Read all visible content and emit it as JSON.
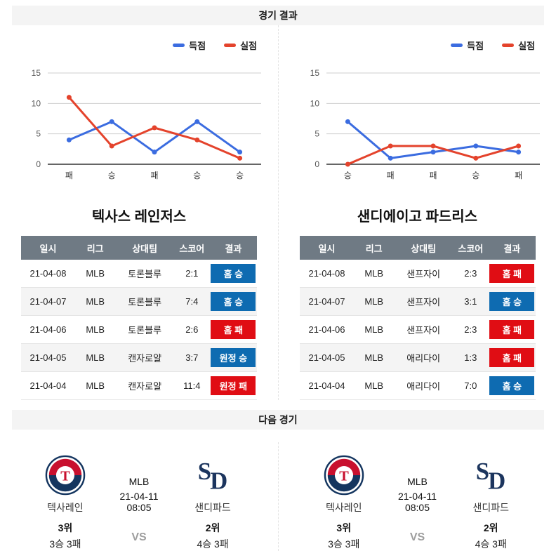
{
  "sections": {
    "results": "경기 결과",
    "next": "다음 경기"
  },
  "legend": {
    "scored": "득점",
    "conceded": "실점"
  },
  "colors": {
    "win_badge": "#0e6bb1",
    "loss_badge": "#e00d14",
    "table_header": "#6f7a84",
    "scored_line": "#3b6ce0",
    "conceded_line": "#e4432c"
  },
  "chart_data": [
    {
      "type": "line",
      "team": "텍사스 레인저스",
      "categories": [
        "패",
        "승",
        "패",
        "승",
        "승"
      ],
      "series": [
        {
          "name": "득점",
          "color": "#3b6ce0",
          "values": [
            4,
            7,
            2,
            7,
            2
          ]
        },
        {
          "name": "실점",
          "color": "#e4432c",
          "values": [
            11,
            3,
            6,
            4,
            1
          ]
        }
      ],
      "ylim": [
        0,
        15
      ],
      "yticks": [
        0,
        5,
        10,
        15
      ],
      "grid": true,
      "legend_position": "top-right"
    },
    {
      "type": "line",
      "team": "샌디에이고 파드리스",
      "categories": [
        "승",
        "패",
        "패",
        "승",
        "패"
      ],
      "series": [
        {
          "name": "득점",
          "color": "#3b6ce0",
          "values": [
            7,
            1,
            2,
            3,
            2
          ]
        },
        {
          "name": "실점",
          "color": "#e4432c",
          "values": [
            0,
            3,
            3,
            1,
            3
          ]
        }
      ],
      "ylim": [
        0,
        15
      ],
      "yticks": [
        0,
        5,
        10,
        15
      ],
      "grid": true,
      "legend_position": "top-right"
    }
  ],
  "teams": [
    {
      "title": "텍사스 레인저스",
      "headers": [
        "일시",
        "리그",
        "상대팀",
        "스코어",
        "결과"
      ],
      "rows": [
        {
          "date": "21-04-08",
          "league": "MLB",
          "opponent": "토론블루",
          "score": "2:1",
          "result": "홈 승",
          "result_type": "win"
        },
        {
          "date": "21-04-07",
          "league": "MLB",
          "opponent": "토론블루",
          "score": "7:4",
          "result": "홈 승",
          "result_type": "win"
        },
        {
          "date": "21-04-06",
          "league": "MLB",
          "opponent": "토론블루",
          "score": "2:6",
          "result": "홈 패",
          "result_type": "loss"
        },
        {
          "date": "21-04-05",
          "league": "MLB",
          "opponent": "캔자로얄",
          "score": "3:7",
          "result": "원정 승",
          "result_type": "win"
        },
        {
          "date": "21-04-04",
          "league": "MLB",
          "opponent": "캔자로얄",
          "score": "11:4",
          "result": "원정 패",
          "result_type": "loss"
        }
      ]
    },
    {
      "title": "샌디에이고 파드리스",
      "headers": [
        "일시",
        "리그",
        "상대팀",
        "스코어",
        "결과"
      ],
      "rows": [
        {
          "date": "21-04-08",
          "league": "MLB",
          "opponent": "샌프자이",
          "score": "2:3",
          "result": "홈 패",
          "result_type": "loss"
        },
        {
          "date": "21-04-07",
          "league": "MLB",
          "opponent": "샌프자이",
          "score": "3:1",
          "result": "홈 승",
          "result_type": "win"
        },
        {
          "date": "21-04-06",
          "league": "MLB",
          "opponent": "샌프자이",
          "score": "2:3",
          "result": "홈 패",
          "result_type": "loss"
        },
        {
          "date": "21-04-05",
          "league": "MLB",
          "opponent": "애리다이",
          "score": "1:3",
          "result": "홈 패",
          "result_type": "loss"
        },
        {
          "date": "21-04-04",
          "league": "MLB",
          "opponent": "애리다이",
          "score": "7:0",
          "result": "홈 승",
          "result_type": "win"
        }
      ]
    }
  ],
  "next_matches": [
    {
      "league": "MLB",
      "datetime": "21-04-11 08:05",
      "vs": "VS",
      "home": {
        "name": "텍사레인",
        "rank": "3위",
        "record": "3승 3패"
      },
      "away": {
        "name": "샌디파드",
        "rank": "2위",
        "record": "4승 3패"
      }
    },
    {
      "league": "MLB",
      "datetime": "21-04-11 08:05",
      "vs": "VS",
      "home": {
        "name": "텍사레인",
        "rank": "3위",
        "record": "3승 3패"
      },
      "away": {
        "name": "샌디파드",
        "rank": "2위",
        "record": "4승 3패"
      }
    }
  ]
}
